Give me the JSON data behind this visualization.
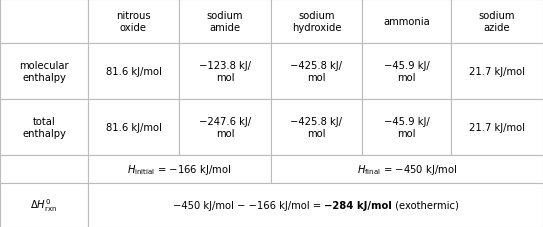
{
  "col_headers": [
    "nitrous\noxide",
    "sodium\namide",
    "sodium\nhydroxide",
    "ammonia",
    "sodium\nazide"
  ],
  "mol_enthalpy": [
    "81.6 kJ/mol",
    "−123.8 kJ/\nmol",
    "−425.8 kJ/\nmol",
    "−45.9 kJ/\nmol",
    "21.7 kJ/mol"
  ],
  "tot_enthalpy": [
    "81.6 kJ/mol",
    "−247.6 kJ/\nmol",
    "−425.8 kJ/\nmol",
    "−45.9 kJ/\nmol",
    "21.7 kJ/mol"
  ],
  "background": "#ffffff",
  "text_color": "#000000",
  "grid_color": "#bbbbbb",
  "font_size": 7.2,
  "fig_w": 5.43,
  "fig_h": 2.28,
  "dpi": 100
}
